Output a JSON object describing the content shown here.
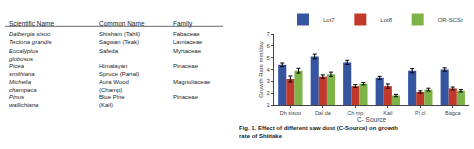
{
  "chart_data": [
    {
      "type": "table",
      "columns": [
        "Scientific Name",
        "Common Name",
        "Family"
      ],
      "rows": [
        [
          "Dalbergia sisoo",
          "Shisham (Tahli)",
          "Fabaceae"
        ],
        [
          "Tectona grandis",
          "Sagwan (Teak)",
          "Lamiaceae"
        ],
        [
          "Eucalyptus\nglobosus",
          "Safeda",
          "Myrtaceae"
        ],
        [
          "Picea\nsmithiana",
          "Himalayan\nSpruce (Partal)",
          "Pinaceae"
        ],
        [
          "Michelia\nchampaca",
          "Aura Wood\n(Champ)",
          "Magnoliaceae"
        ],
        [
          "Pinus\nwallichiana",
          "Blue Pine\n(Kail)",
          "Pinaceae"
        ]
      ]
    },
    {
      "type": "bar",
      "categories": [
        "Dh sisoo",
        "Dal da",
        "Ch mp",
        "Kail",
        "Pi cl",
        "Bagca"
      ],
      "series": [
        {
          "name": "Lot7",
          "color": "#3655a0",
          "values": [
            4.4,
            5.1,
            4.6,
            3.3,
            3.9,
            4.0
          ],
          "errors": [
            0.15,
            0.2,
            0.18,
            0.12,
            0.18,
            0.14
          ]
        },
        {
          "name": "Lot8",
          "color": "#c0392b",
          "values": [
            3.2,
            3.4,
            2.6,
            2.6,
            2.1,
            2.4
          ],
          "errors": [
            0.25,
            0.15,
            0.12,
            0.18,
            0.1,
            0.12
          ]
        },
        {
          "name": "OR-SCSt",
          "color": "#7db347",
          "values": [
            3.9,
            3.6,
            2.8,
            1.8,
            2.3,
            2.2
          ],
          "errors": [
            0.2,
            0.18,
            0.1,
            0.1,
            0.12,
            0.1
          ]
        }
      ],
      "xlabel": "C- Source",
      "ylabel": "Growth Rate mm/day",
      "ylim": [
        1,
        7
      ],
      "yticks": [
        1,
        2,
        3,
        4,
        5,
        6,
        7
      ],
      "grid": false,
      "legend": "upper right",
      "annotations": [
        "Fig. 1. Effect of different saw dust (C-Source) on growth\nrate of Shiitake"
      ]
    }
  ]
}
